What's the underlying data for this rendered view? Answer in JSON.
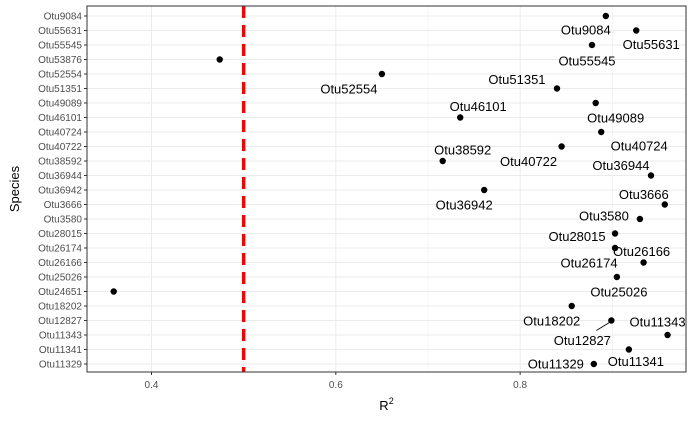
{
  "chart_data": {
    "type": "scatter",
    "xlabel": "R",
    "xlabel_sup": "2",
    "ylabel": "Species",
    "xlim": [
      0.33,
      0.98
    ],
    "xticks": [
      0.4,
      0.6,
      0.8
    ],
    "xtick_labels": [
      "0.4",
      "0.6",
      "0.8"
    ],
    "reference_line": {
      "x": 0.5,
      "color": "#ff0000",
      "style": "dashed"
    },
    "grid": true,
    "background": "#ffffff",
    "grid_color": "#ebebeb",
    "point_color": "#000000",
    "categories": [
      "Otu11329",
      "Otu11341",
      "Otu11343",
      "Otu12827",
      "Otu18202",
      "Otu24651",
      "Otu25026",
      "Otu26166",
      "Otu26174",
      "Otu28015",
      "Otu3580",
      "Otu3666",
      "Otu36942",
      "Otu36944",
      "Otu38592",
      "Otu40722",
      "Otu40724",
      "Otu46101",
      "Otu49089",
      "Otu51351",
      "Otu52554",
      "Otu53876",
      "Otu55545",
      "Otu55631",
      "Otu9084"
    ],
    "points": [
      {
        "species": "Otu9084",
        "r2": 0.893,
        "label": "Otu9084"
      },
      {
        "species": "Otu55631",
        "r2": 0.926,
        "label": "Otu55631"
      },
      {
        "species": "Otu55545",
        "r2": 0.878,
        "label": "Otu55545"
      },
      {
        "species": "Otu53876",
        "r2": 0.474,
        "label": ""
      },
      {
        "species": "Otu52554",
        "r2": 0.65,
        "label": "Otu52554"
      },
      {
        "species": "Otu51351",
        "r2": 0.84,
        "label": "Otu51351"
      },
      {
        "species": "Otu49089",
        "r2": 0.882,
        "label": "Otu49089"
      },
      {
        "species": "Otu46101",
        "r2": 0.735,
        "label": "Otu46101"
      },
      {
        "species": "Otu40724",
        "r2": 0.888,
        "label": "Otu40724"
      },
      {
        "species": "Otu40722",
        "r2": 0.845,
        "label": "Otu40722"
      },
      {
        "species": "Otu38592",
        "r2": 0.716,
        "label": "Otu38592"
      },
      {
        "species": "Otu36944",
        "r2": 0.942,
        "label": "Otu36944"
      },
      {
        "species": "Otu36942",
        "r2": 0.761,
        "label": "Otu36942"
      },
      {
        "species": "Otu3666",
        "r2": 0.957,
        "label": "Otu3666"
      },
      {
        "species": "Otu3580",
        "r2": 0.93,
        "label": "Otu3580"
      },
      {
        "species": "Otu28015",
        "r2": 0.903,
        "label": "Otu28015"
      },
      {
        "species": "Otu26174",
        "r2": 0.903,
        "label": "Otu26174"
      },
      {
        "species": "Otu26166",
        "r2": 0.934,
        "label": "Otu26166"
      },
      {
        "species": "Otu25026",
        "r2": 0.905,
        "label": "Otu25026"
      },
      {
        "species": "Otu24651",
        "r2": 0.359,
        "label": ""
      },
      {
        "species": "Otu18202",
        "r2": 0.856,
        "label": "Otu18202"
      },
      {
        "species": "Otu12827",
        "r2": 0.899,
        "label": "Otu12827"
      },
      {
        "species": "Otu11343",
        "r2": 0.96,
        "label": "Otu11343"
      },
      {
        "species": "Otu11341",
        "r2": 0.918,
        "label": "Otu11341"
      },
      {
        "species": "Otu11329",
        "r2": 0.88,
        "label": "Otu11329"
      }
    ]
  }
}
